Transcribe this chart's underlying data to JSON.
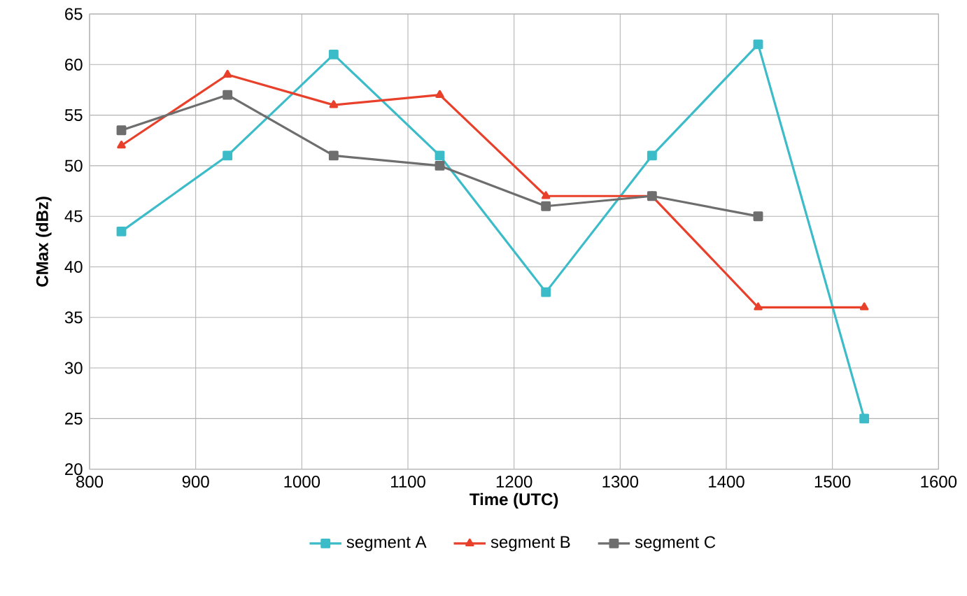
{
  "chart_data": {
    "type": "line",
    "xlabel": "Time (UTC)",
    "ylabel": "CMax (dBz)",
    "x": [
      830,
      930,
      1030,
      1130,
      1230,
      1330,
      1430,
      1530
    ],
    "series": [
      {
        "name": "segment A",
        "color": "#3bbcc8",
        "marker": "square",
        "values": [
          43.5,
          51,
          61,
          51,
          37.5,
          51,
          62,
          25
        ]
      },
      {
        "name": "segment B",
        "color": "#e8402a",
        "marker": "triangle",
        "values": [
          52,
          59,
          56,
          57,
          47,
          47,
          36,
          36
        ]
      },
      {
        "name": "segment C",
        "color": "#6e6e6e",
        "marker": "square",
        "values": [
          53.5,
          57,
          51,
          50,
          46,
          47,
          45,
          null
        ]
      }
    ],
    "xlim": [
      800,
      1600
    ],
    "xticks": [
      800,
      900,
      1000,
      1100,
      1200,
      1300,
      1400,
      1500,
      1600
    ],
    "ylim": [
      20,
      65
    ],
    "yticks": [
      20,
      25,
      30,
      35,
      40,
      45,
      50,
      55,
      60,
      65
    ],
    "grid": true,
    "legend": "bottom"
  }
}
